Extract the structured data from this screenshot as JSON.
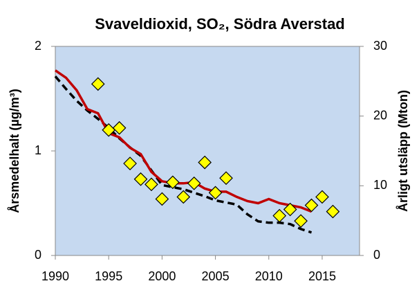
{
  "chart_data": {
    "type": "line",
    "title": "Svaveldioxid, SO₂, Södra Averstad",
    "y_label": "Årsmedelhalt (µg/m³)",
    "y2_label": "Årligt utsläpp (Mton)",
    "background": "#c6d9f0",
    "xlim": [
      1990,
      2018.5
    ],
    "xticks": [
      1990,
      1995,
      2000,
      2005,
      2010,
      2015
    ],
    "ylim": [
      0,
      2
    ],
    "yticks": [
      0,
      1,
      2
    ],
    "y2lim": [
      0,
      30
    ],
    "y2ticks": [
      0,
      10,
      20,
      30
    ],
    "series": [
      {
        "color": "#000000",
        "axis": "y2",
        "dash": true,
        "x": [
          1990,
          1991,
          1992,
          1993,
          1994,
          1995,
          1996,
          1997,
          1998,
          1999,
          2000,
          2001,
          2002,
          2003,
          2004,
          2005,
          2006,
          2007,
          2008,
          2009,
          2010,
          2011,
          2012,
          2013,
          2014
        ],
        "values": [
          25.7,
          23.9,
          22.2,
          20.8,
          19.6,
          18.3,
          16.8,
          15.5,
          14.3,
          12.2,
          10.1,
          9.8,
          9.5,
          9.0,
          8.5,
          7.9,
          7.6,
          7.3,
          5.9,
          4.9,
          4.7,
          4.7,
          4.5,
          3.8,
          3.3
        ]
      },
      {
        "color": "#c00000",
        "axis": "y",
        "x": [
          1990,
          1991,
          1992,
          1993,
          1994,
          1995,
          1996,
          1997,
          1998,
          1999,
          2000,
          2001,
          2002,
          2003,
          2004,
          2005,
          2006,
          2007,
          2008,
          2009,
          2010,
          2011,
          2012,
          2013,
          2014
        ],
        "values": [
          1.77,
          1.7,
          1.58,
          1.4,
          1.36,
          1.17,
          1.13,
          1.03,
          0.97,
          0.8,
          0.71,
          0.69,
          0.69,
          0.7,
          0.64,
          0.61,
          0.61,
          0.56,
          0.52,
          0.5,
          0.54,
          0.5,
          0.48,
          0.46,
          0.42
        ]
      },
      {
        "color": "#ffff00",
        "axis": "y",
        "marker": "diamond",
        "x": [
          1994,
          1995,
          1996,
          1997,
          1998,
          1999,
          2000,
          2001,
          2002,
          2003,
          2004,
          2005,
          2006,
          2011,
          2012,
          2013,
          2014,
          2015,
          2016
        ],
        "values": [
          1.64,
          1.2,
          1.22,
          0.88,
          0.73,
          0.68,
          0.54,
          0.7,
          0.56,
          0.69,
          0.89,
          0.6,
          0.74,
          0.38,
          0.44,
          0.33,
          0.48,
          0.56,
          0.42
        ]
      }
    ]
  }
}
